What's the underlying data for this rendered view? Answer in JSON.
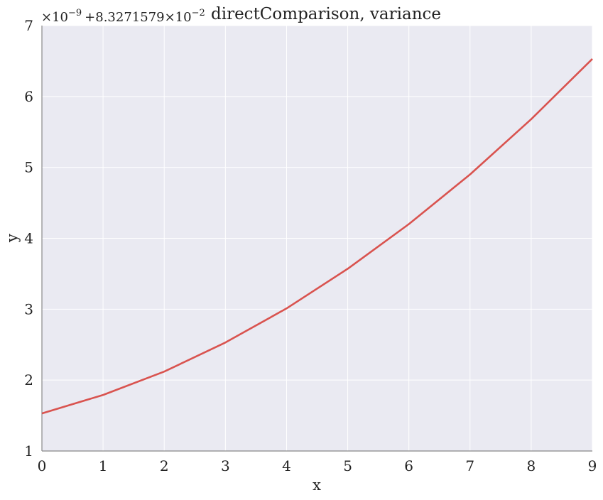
{
  "chart_data": {
    "type": "line",
    "title": "directComparison, variance",
    "xlabel": "x",
    "ylabel": "y",
    "y_offset_text": {
      "base": "×10",
      "exponent": "−9",
      "plus": "+8.3271579×10",
      "plus_exponent": "−2"
    },
    "xlim": [
      0,
      9
    ],
    "ylim": [
      1,
      7
    ],
    "xticks": [
      "0",
      "1",
      "2",
      "3",
      "4",
      "5",
      "6",
      "7",
      "8",
      "9"
    ],
    "yticks": [
      "1",
      "2",
      "3",
      "4",
      "5",
      "6",
      "7"
    ],
    "grid": true,
    "colors": {
      "background": "#eaeaf2",
      "grid": "#ffffff",
      "line": "#d9534f",
      "axis": "#888888"
    },
    "series": [
      {
        "x": [
          0,
          1,
          2,
          3,
          4,
          5,
          6,
          7,
          8,
          9
        ],
        "y": [
          1.53,
          1.79,
          2.12,
          2.53,
          3.01,
          3.57,
          4.2,
          4.9,
          5.68,
          6.53
        ]
      }
    ]
  }
}
